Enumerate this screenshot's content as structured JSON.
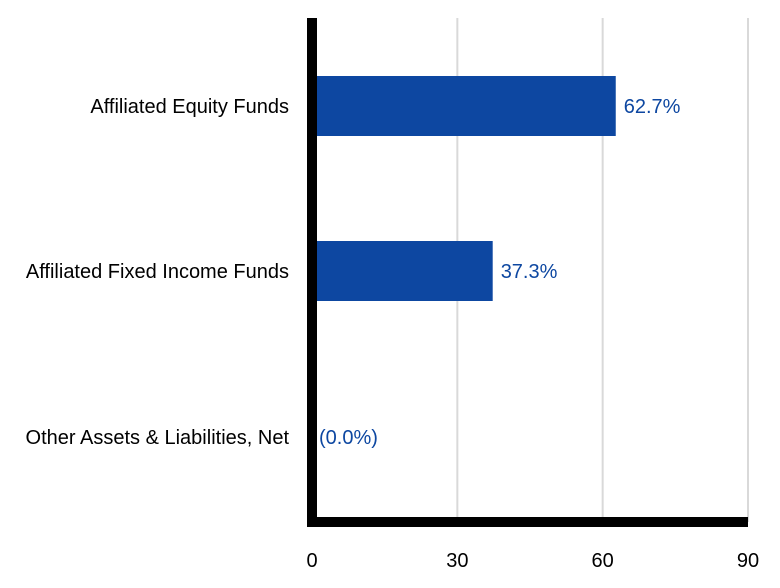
{
  "chart_data": {
    "type": "bar",
    "orientation": "horizontal",
    "title": "",
    "xlabel": "",
    "ylabel": "",
    "categories": [
      "Affiliated Equity Funds",
      "Affiliated Fixed Income Funds",
      "Other Assets & Liabilities, Net"
    ],
    "values": [
      62.7,
      37.3,
      0.0
    ],
    "data_labels": [
      "62.7%",
      "37.3%",
      "(0.0%)"
    ],
    "xlim": [
      0,
      90
    ],
    "xticks": [
      0,
      30,
      60,
      90
    ],
    "xtick_labels": [
      "0",
      "30",
      "60",
      "90"
    ],
    "grid": "vertical",
    "legend": "none",
    "colors": {
      "bar": "#0d47a1",
      "label": "#0d47a1",
      "axis": "#000000",
      "grid": "#d9d9d9"
    }
  }
}
